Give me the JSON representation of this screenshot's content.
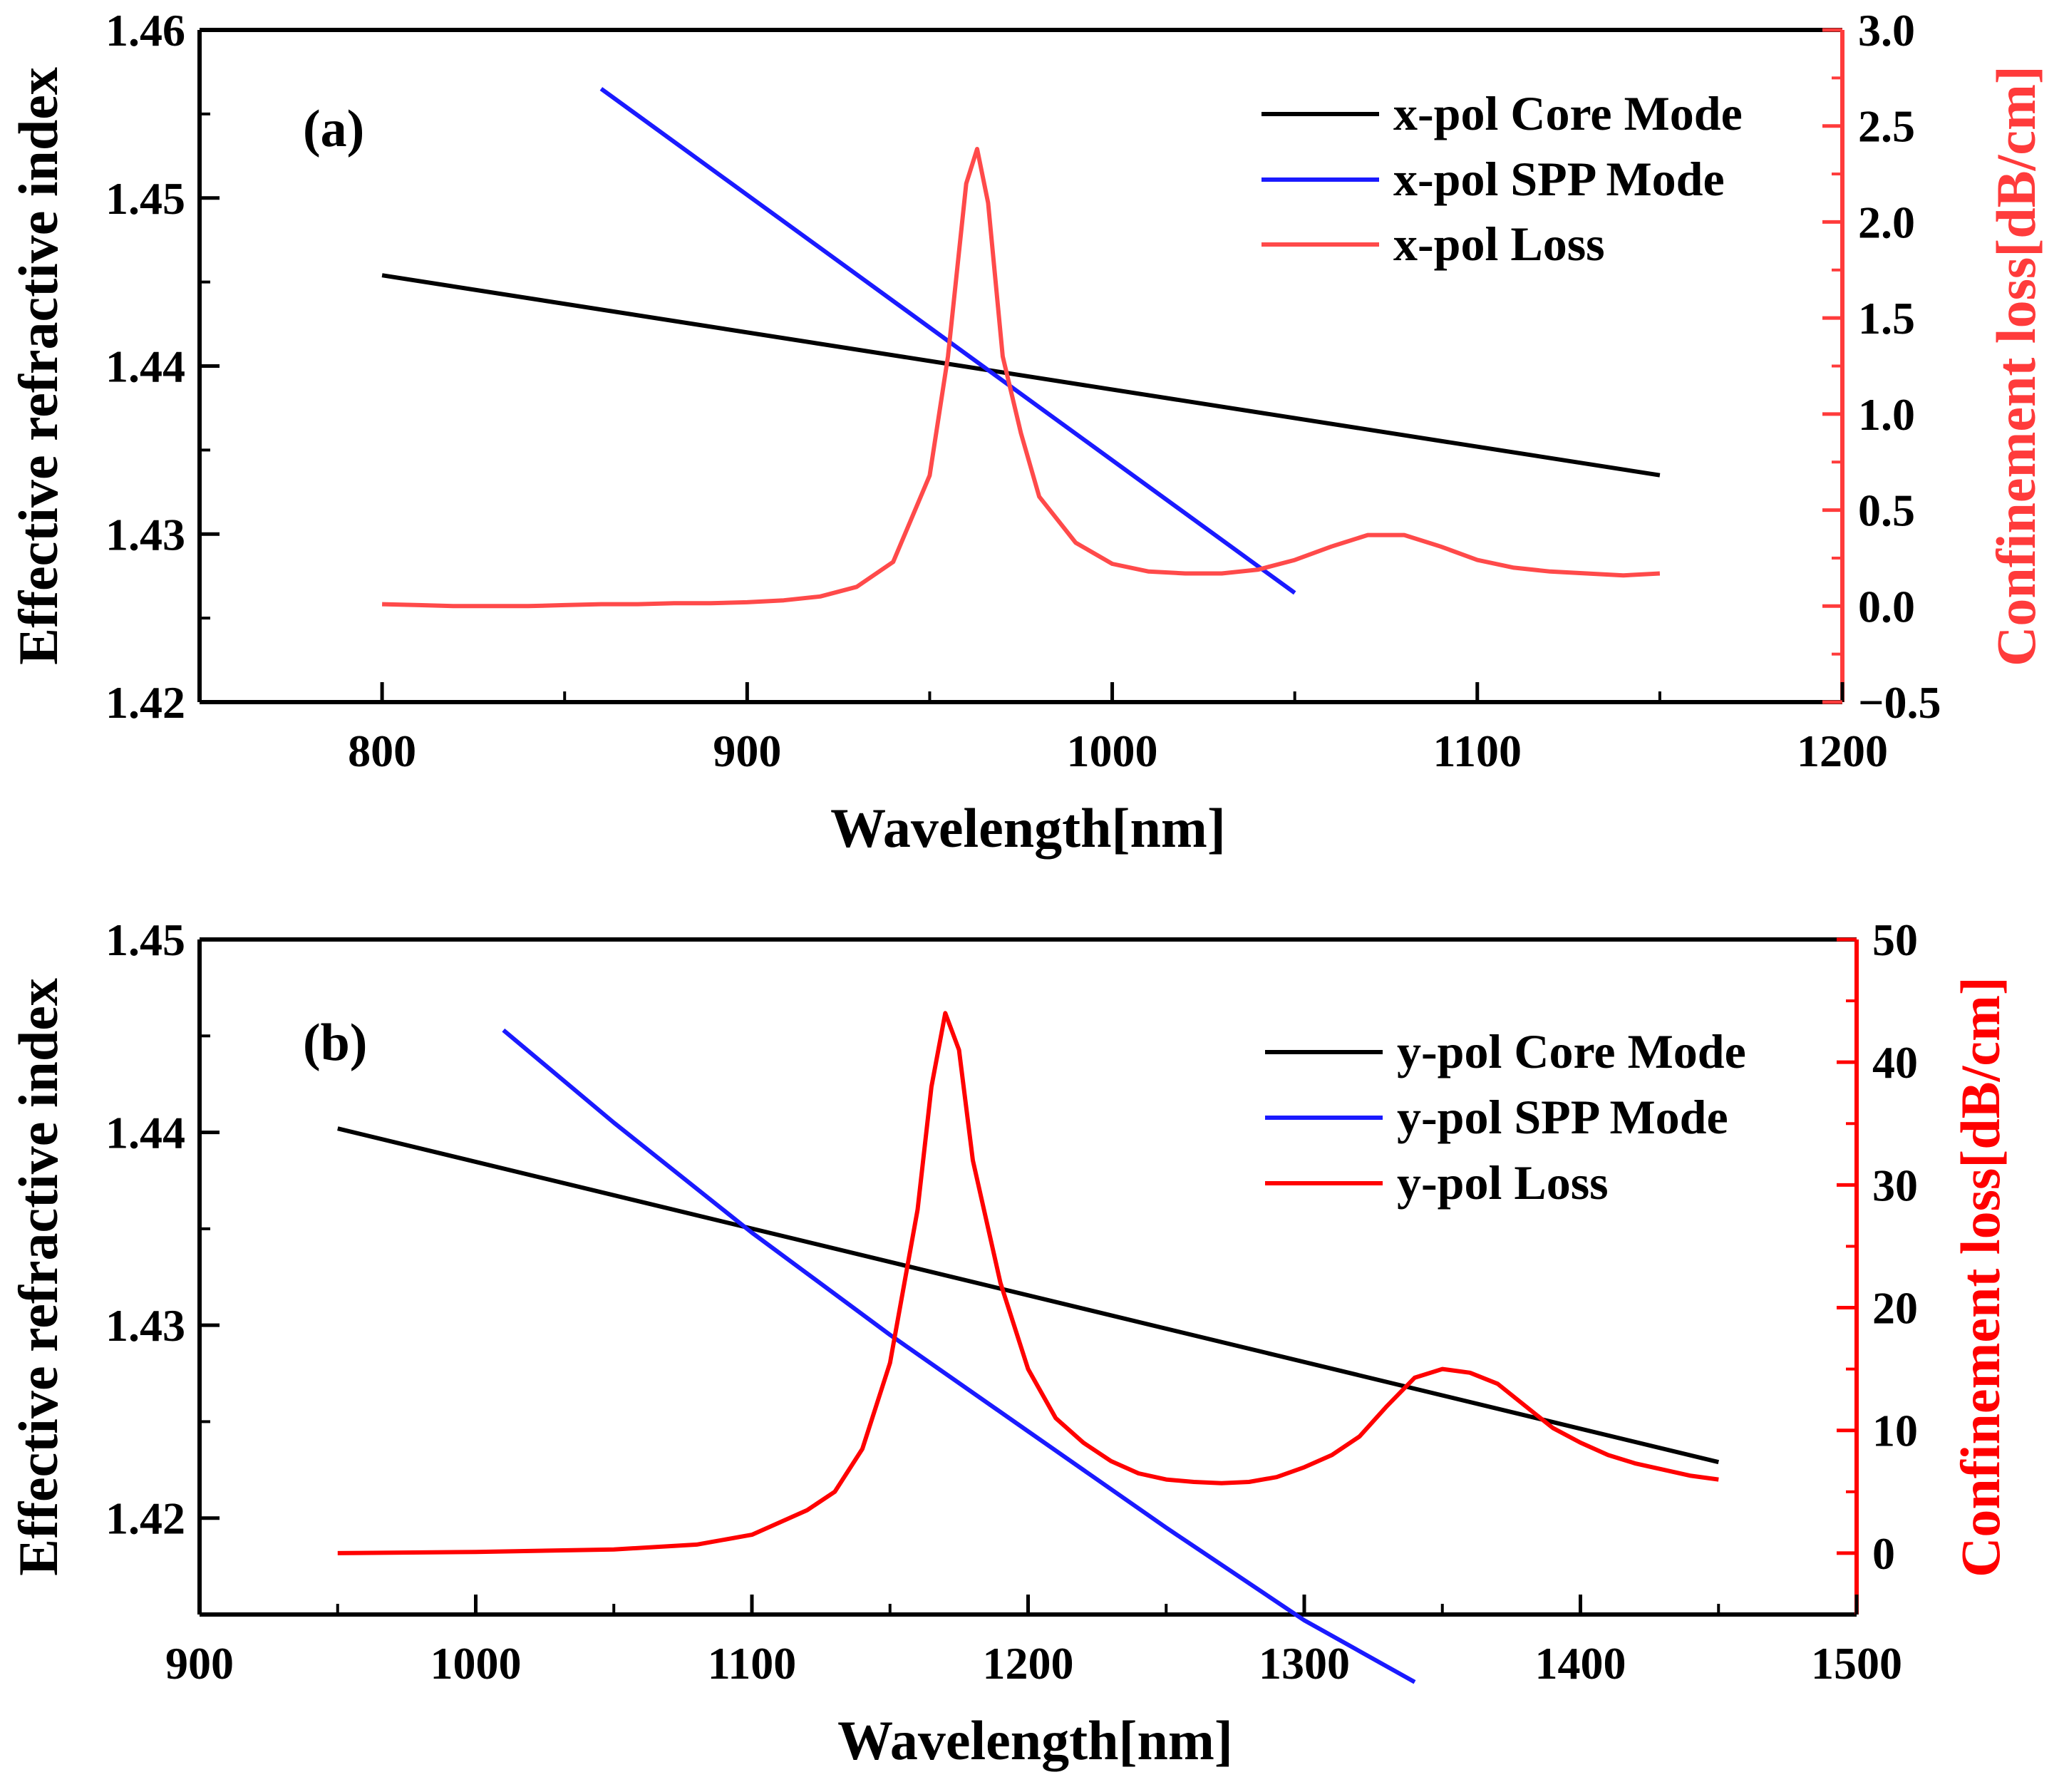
{
  "chart_data": [
    {
      "type": "line",
      "panel_label": "(a)",
      "xlabel": "Wavelength[nm]",
      "ylabel_left": "Effective refractive index",
      "ylabel_right": "Confinement loss[dB/cm]",
      "xlim": [
        750,
        1200
      ],
      "xticks": [
        800,
        900,
        1000,
        1100,
        1200
      ],
      "ylim_left": [
        1.42,
        1.46
      ],
      "yticks_left": [
        "1.42",
        "1.43",
        "1.44",
        "1.45",
        "1.46"
      ],
      "ylim_right": [
        -0.5,
        3.0
      ],
      "yticks_right": [
        "−0.5",
        "0.0",
        "0.5",
        "1.0",
        "1.5",
        "2.0",
        "2.5",
        "3.0"
      ],
      "right_axis_color": "#ff3b3b",
      "series": [
        {
          "name": "x-pol Core Mode",
          "axis": "left",
          "color": "#000000",
          "x": [
            800,
            1150
          ],
          "y": [
            1.4454,
            1.4335
          ]
        },
        {
          "name": "x-pol SPP Mode",
          "axis": "left",
          "color": "#1a1aff",
          "x": [
            860,
            1050
          ],
          "y": [
            1.4565,
            1.4265
          ]
        },
        {
          "name": "x-pol Loss",
          "axis": "right",
          "color": "#ff4a4a",
          "x": [
            800,
            810,
            820,
            830,
            840,
            850,
            860,
            870,
            880,
            890,
            900,
            910,
            920,
            930,
            940,
            950,
            955,
            960,
            963,
            966,
            970,
            975,
            980,
            990,
            1000,
            1010,
            1020,
            1030,
            1040,
            1050,
            1060,
            1070,
            1080,
            1090,
            1100,
            1110,
            1120,
            1130,
            1140,
            1150
          ],
          "y": [
            0.01,
            0.005,
            0.0,
            0.0,
            0.0,
            0.005,
            0.01,
            0.01,
            0.015,
            0.015,
            0.02,
            0.03,
            0.05,
            0.1,
            0.23,
            0.68,
            1.3,
            2.2,
            2.38,
            2.1,
            1.3,
            0.9,
            0.57,
            0.33,
            0.22,
            0.18,
            0.17,
            0.17,
            0.19,
            0.24,
            0.31,
            0.37,
            0.37,
            0.31,
            0.24,
            0.2,
            0.18,
            0.17,
            0.16,
            0.17
          ]
        }
      ]
    },
    {
      "type": "line",
      "panel_label": "(b)",
      "xlabel": "Wavelength[nm]",
      "ylabel_left": "Effective refractive index",
      "ylabel_right": "Confinement loss[dB/cm]",
      "xlim": [
        900,
        1500
      ],
      "xticks": [
        900,
        1000,
        1100,
        1200,
        1300,
        1400,
        1500
      ],
      "ylim_left": [
        1.415,
        1.45
      ],
      "yticks_left": [
        "1.42",
        "1.43",
        "1.44",
        "1.45"
      ],
      "ylim_right": [
        -5,
        50
      ],
      "yticks_right": [
        "0",
        "10",
        "20",
        "30",
        "40",
        "50"
      ],
      "right_axis_color": "#ff0000",
      "series": [
        {
          "name": "y-pol Core Mode",
          "axis": "left",
          "color": "#000000",
          "x": [
            950,
            1450
          ],
          "y": [
            1.4402,
            1.4229
          ]
        },
        {
          "name": "y-pol SPP Mode",
          "axis": "left",
          "color": "#1a1aff",
          "x": [
            1010,
            1050,
            1100,
            1150,
            1200,
            1250,
            1300,
            1340
          ],
          "y": [
            1.4453,
            1.4405,
            1.4348,
            1.4295,
            1.4245,
            1.4195,
            1.4147,
            1.4115
          ]
        },
        {
          "name": "y-pol Loss",
          "axis": "right",
          "color": "#ff0000",
          "x": [
            950,
            1000,
            1050,
            1080,
            1100,
            1110,
            1120,
            1130,
            1140,
            1150,
            1160,
            1165,
            1170,
            1175,
            1180,
            1190,
            1200,
            1210,
            1220,
            1230,
            1240,
            1250,
            1260,
            1270,
            1280,
            1290,
            1300,
            1310,
            1320,
            1330,
            1340,
            1350,
            1360,
            1370,
            1380,
            1390,
            1400,
            1410,
            1420,
            1430,
            1440,
            1450
          ],
          "y": [
            0.0,
            0.1,
            0.3,
            0.7,
            1.5,
            2.5,
            3.5,
            5.0,
            8.5,
            15.5,
            28,
            38,
            44,
            41,
            32,
            22,
            15,
            11,
            9,
            7.5,
            6.5,
            6.0,
            5.8,
            5.7,
            5.8,
            6.2,
            7.0,
            8.0,
            9.5,
            12,
            14.3,
            15.0,
            14.7,
            13.8,
            12.0,
            10.2,
            9.0,
            8.0,
            7.3,
            6.8,
            6.3,
            6.0
          ]
        }
      ]
    }
  ]
}
